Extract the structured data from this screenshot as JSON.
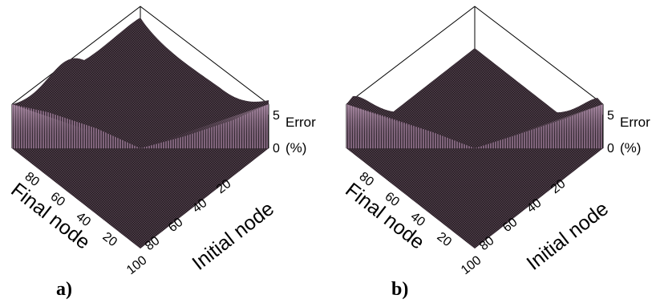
{
  "figure": {
    "panels": [
      {
        "label": "a)",
        "xlabel": "Final node",
        "ylabel": "Initial node",
        "zlabel_line1": "Error",
        "zlabel_line2": "(%)",
        "z_ticks": [
          "5",
          "0"
        ],
        "final_ticks": [
          "80",
          "60",
          "40",
          "20"
        ],
        "initial_ticks": [
          "20",
          "40",
          "60",
          "80",
          "100"
        ]
      },
      {
        "label": "b)",
        "xlabel": "Final node",
        "ylabel": "Initial node",
        "zlabel_line1": "Error",
        "zlabel_line2": "(%)",
        "z_ticks": [
          "5",
          "0"
        ],
        "final_ticks": [
          "80",
          "60",
          "40",
          "20"
        ],
        "initial_ticks": [
          "20",
          "40",
          "60",
          "80",
          "100"
        ]
      }
    ]
  },
  "chart_data": [
    {
      "type": "surface",
      "panel": "a)",
      "xlabel": "Final node",
      "ylabel": "Initial node",
      "zlabel": "Error (%)",
      "x_ticks": [
        20,
        40,
        60,
        80
      ],
      "y_ticks": [
        20,
        40,
        60,
        80,
        100
      ],
      "zlim": [
        0,
        5
      ],
      "z_ticks": [
        0,
        5
      ],
      "surface_color": "#3a2a36",
      "wall_color": "#a07a9a"
    },
    {
      "type": "surface",
      "panel": "b)",
      "xlabel": "Final node",
      "ylabel": "Initial node",
      "zlabel": "Error (%)",
      "x_ticks": [
        20,
        40,
        60,
        80
      ],
      "y_ticks": [
        20,
        40,
        60,
        80,
        100
      ],
      "zlim": [
        0,
        5
      ],
      "z_ticks": [
        0,
        5
      ],
      "surface_color": "#3a2a36",
      "wall_color": "#a07a9a"
    }
  ]
}
